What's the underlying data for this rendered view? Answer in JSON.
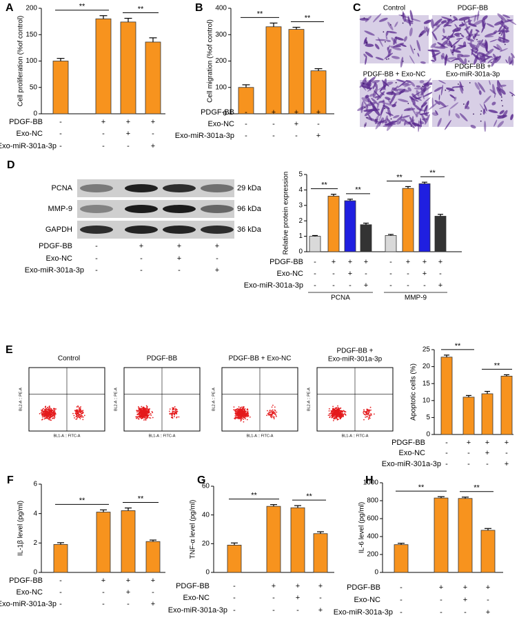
{
  "panels": {
    "C": {
      "letter": "C",
      "images": [
        {
          "label": [
            "Control"
          ]
        },
        {
          "label": [
            "PDGF-BB"
          ]
        },
        {
          "label": [
            "PDGF-BB + Exo-NC"
          ]
        },
        {
          "label": [
            "PDGF-BB +",
            "Exo-miR-301a-3p"
          ]
        }
      ]
    },
    "blot": {
      "proteins": [
        {
          "name": "PCNA",
          "size": "29 kDa"
        },
        {
          "name": "MMP-9",
          "size": "96 kDa"
        },
        {
          "name": "GAPDH",
          "size": "36 kDa"
        }
      ],
      "conditions": [
        {
          "name": "PDGF-BB",
          "signs": [
            "-",
            "+",
            "+",
            "+"
          ]
        },
        {
          "name": "Exo-NC",
          "signs": [
            "-",
            "-",
            "+",
            "-"
          ]
        },
        {
          "name": "Exo-miR-301a-3p",
          "signs": [
            "-",
            "-",
            "-",
            "+"
          ]
        }
      ]
    },
    "E": {
      "letter": "E",
      "plots": [
        {
          "label": [
            "Control"
          ]
        },
        {
          "label": [
            "PDGF-BB"
          ]
        },
        {
          "label": [
            "PDGF-BB + Exo-NC"
          ]
        },
        {
          "label": [
            "PDGF-BB +",
            "Exo-miR-301a-3p"
          ]
        }
      ],
      "xlabel": "BL1-A :: FITC-A",
      "ylabel": "BL2-A :: PE-A"
    }
  },
  "chart_data": [
    {
      "type": "bar",
      "panel": "A",
      "ylabel": "Cell proliferation (%of control)",
      "ylim": [
        0,
        200
      ],
      "yticks": [
        0,
        50,
        100,
        150,
        200
      ],
      "values": [
        100,
        180,
        174,
        136
      ],
      "errors": [
        5,
        6,
        7,
        8
      ],
      "color": "#f7931e",
      "annotations": [
        "**",
        "**"
      ],
      "conditions": [
        {
          "name": "PDGF-BB",
          "signs": [
            "-",
            "+",
            "+",
            "+"
          ]
        },
        {
          "name": "Exo-NC",
          "signs": [
            "-",
            "-",
            "+",
            "-"
          ]
        },
        {
          "name": "Exo-miR-301a-3p",
          "signs": [
            "-",
            "-",
            "-",
            "+"
          ]
        }
      ]
    },
    {
      "type": "bar",
      "panel": "B",
      "ylabel": "Cell migration (%of control)",
      "ylim": [
        0,
        400
      ],
      "yticks": [
        0,
        100,
        200,
        300,
        400
      ],
      "values": [
        100,
        330,
        320,
        163
      ],
      "errors": [
        10,
        14,
        8,
        8
      ],
      "color": "#f7931e",
      "annotations": [
        "**",
        "**"
      ],
      "conditions": [
        {
          "name": "PDGF-BB",
          "signs": [
            "-",
            "+",
            "+",
            "+"
          ]
        },
        {
          "name": "Exo-NC",
          "signs": [
            "-",
            "-",
            "+",
            "-"
          ]
        },
        {
          "name": "Exo-miR-301a-3p",
          "signs": [
            "-",
            "-",
            "-",
            "+"
          ]
        }
      ]
    },
    {
      "type": "grouped-bar",
      "panel": "D",
      "ylabel": "Relative protein expression",
      "ylim": [
        0,
        5
      ],
      "yticks": [
        0,
        1,
        2,
        3,
        4,
        5
      ],
      "colors": [
        "#d9d9d9",
        "#f7931e",
        "#1f1fe0",
        "#333333"
      ],
      "groups": [
        {
          "name": "PCNA",
          "values": [
            1.0,
            3.6,
            3.3,
            1.75
          ],
          "errors": [
            0.05,
            0.12,
            0.1,
            0.1
          ],
          "annotations": [
            "**",
            "**"
          ]
        },
        {
          "name": "MMP-9",
          "values": [
            1.05,
            4.1,
            4.4,
            2.3
          ],
          "errors": [
            0.07,
            0.12,
            0.1,
            0.12
          ],
          "annotations": [
            "**",
            "**"
          ]
        }
      ],
      "conditions": [
        {
          "name": "PDGF-BB",
          "signs": [
            "-",
            "+",
            "+",
            "+",
            "-",
            "+",
            "+",
            "+"
          ]
        },
        {
          "name": "Exo-NC",
          "signs": [
            "-",
            "-",
            "+",
            "-",
            "-",
            "-",
            "+",
            "-"
          ]
        },
        {
          "name": "Exo-miR-301a-3p",
          "signs": [
            "-",
            "-",
            "-",
            "+",
            "-",
            "-",
            "-",
            "+"
          ]
        }
      ]
    },
    {
      "type": "bar",
      "ylabel": "Apoptotic cells (%)",
      "ylim": [
        0,
        25
      ],
      "yticks": [
        0,
        5,
        10,
        15,
        20,
        25
      ],
      "values": [
        22.8,
        11,
        12,
        17.2
      ],
      "errors": [
        0.6,
        0.5,
        0.7,
        0.4
      ],
      "color": "#f7931e",
      "annotations": [
        "**",
        "**"
      ],
      "conditions": [
        {
          "name": "PDGF-BB",
          "signs": [
            "-",
            "+",
            "+",
            "+"
          ]
        },
        {
          "name": "Exo-NC",
          "signs": [
            "-",
            "-",
            "+",
            "-"
          ]
        },
        {
          "name": "Exo-miR-301a-3p",
          "signs": [
            "-",
            "-",
            "-",
            "+"
          ]
        }
      ]
    },
    {
      "type": "bar",
      "panel": "F",
      "ylabel": "IL-1β level (pg/ml)",
      "ylim": [
        0,
        6
      ],
      "yticks": [
        0,
        2,
        4,
        6
      ],
      "values": [
        1.9,
        4.1,
        4.2,
        2.1
      ],
      "errors": [
        0.12,
        0.15,
        0.18,
        0.1
      ],
      "color": "#f7931e",
      "annotations": [
        "**",
        "**"
      ],
      "conditions": [
        {
          "name": "PDGF-BB",
          "signs": [
            "-",
            "+",
            "+",
            "+"
          ]
        },
        {
          "name": "Exo-NC",
          "signs": [
            "-",
            "-",
            "+",
            "-"
          ]
        },
        {
          "name": "Exo-miR-301a-3p",
          "signs": [
            "-",
            "-",
            "-",
            "+"
          ]
        }
      ]
    },
    {
      "type": "bar",
      "panel": "G",
      "ylabel": "TNF-α level (pg/ml)",
      "ylim": [
        0,
        60
      ],
      "yticks": [
        0,
        20,
        40,
        60
      ],
      "values": [
        19,
        46,
        45,
        27
      ],
      "errors": [
        1.5,
        1.2,
        1.5,
        1.3
      ],
      "color": "#f7931e",
      "annotations": [
        "**",
        "**"
      ],
      "conditions": [
        {
          "name": "PDGF-BB",
          "signs": [
            "-",
            "+",
            "+",
            "+"
          ]
        },
        {
          "name": "Exo-NC",
          "signs": [
            "-",
            "-",
            "+",
            "-"
          ]
        },
        {
          "name": "Exo-miR-301a-3p",
          "signs": [
            "-",
            "-",
            "-",
            "+"
          ]
        }
      ]
    },
    {
      "type": "bar",
      "panel": "H",
      "ylabel": "IL-6 level (pg/ml)",
      "ylim": [
        0,
        1000
      ],
      "yticks": [
        0,
        200,
        400,
        600,
        800,
        1000
      ],
      "values": [
        310,
        830,
        825,
        470
      ],
      "errors": [
        15,
        15,
        15,
        20
      ],
      "color": "#f7931e",
      "annotations": [
        "**",
        "**"
      ],
      "conditions": [
        {
          "name": "PDGF-BB",
          "signs": [
            "-",
            "+",
            "+",
            "+"
          ]
        },
        {
          "name": "Exo-NC",
          "signs": [
            "-",
            "-",
            "+",
            "-"
          ]
        },
        {
          "name": "Exo-miR-301a-3p",
          "signs": [
            "-",
            "-",
            "-",
            "+"
          ]
        }
      ]
    }
  ]
}
